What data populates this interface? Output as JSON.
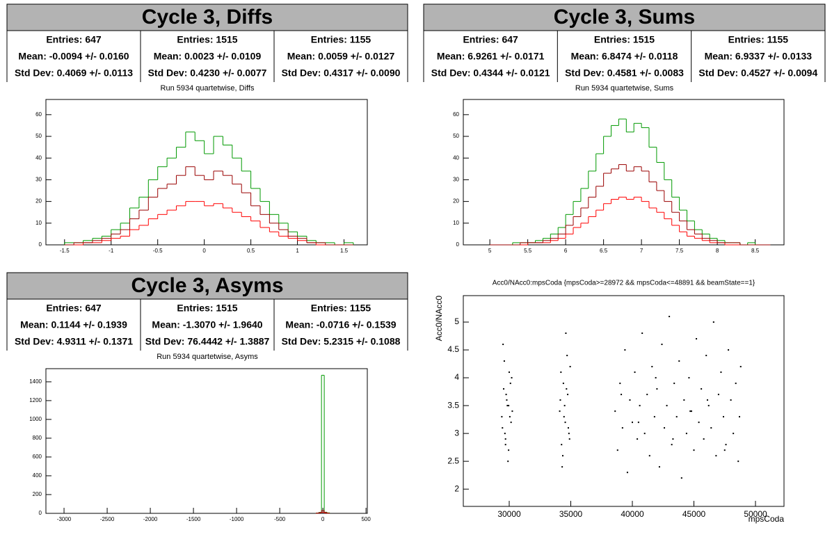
{
  "chart_data": [
    {
      "type": "histogram",
      "title": "Cycle 3, Diffs",
      "subtitle": "Run 5934 quartetwise, Diffs",
      "bins": [
        -1.5,
        -1.4,
        -1.3,
        -1.2,
        -1.1,
        -1,
        -0.9,
        -0.8,
        -0.7,
        -0.6,
        -0.5,
        -0.4,
        -0.3,
        -0.2,
        -0.1,
        0,
        0.1,
        0.2,
        0.3,
        0.4,
        0.5,
        0.6,
        0.7,
        0.8,
        0.9,
        1,
        1.1,
        1.2,
        1.3,
        1.4,
        1.5,
        1.6
      ],
      "series": [
        {
          "color": "#ff0000",
          "stats": [
            "Entries: 647",
            "Mean: -0.0094 +/- 0.0160",
            "Std Dev: 0.4069 +/- 0.0113"
          ],
          "values": [
            0,
            0,
            1,
            1,
            2,
            3,
            4,
            7,
            9,
            12,
            14,
            16,
            18,
            20,
            20,
            18,
            19,
            17,
            15,
            13,
            11,
            8,
            6,
            4,
            3,
            2,
            1,
            0,
            0,
            0,
            0
          ]
        },
        {
          "color": "#009900",
          "stats": [
            "Entries: 1515",
            "Mean: 0.0023 +/- 0.0109",
            "Std Dev: 0.4230 +/- 0.0077"
          ],
          "values": [
            1,
            1,
            2,
            3,
            4,
            7,
            10,
            17,
            22,
            30,
            36,
            40,
            45,
            52,
            48,
            42,
            50,
            46,
            40,
            34,
            26,
            20,
            14,
            10,
            6,
            4,
            2,
            1,
            1,
            0,
            1
          ]
        },
        {
          "color": "#990000",
          "stats": [
            "Entries: 1155",
            "Mean: 0.0059 +/- 0.0127",
            "Std Dev: 0.4317 +/- 0.0090"
          ],
          "values": [
            0,
            1,
            1,
            2,
            3,
            5,
            7,
            12,
            16,
            22,
            26,
            28,
            32,
            36,
            32,
            30,
            34,
            32,
            28,
            24,
            18,
            14,
            10,
            7,
            4,
            3,
            1,
            1,
            0,
            0,
            0
          ]
        }
      ],
      "xlim": [
        -1.7,
        1.75
      ],
      "xticks": [
        -1.5,
        -1,
        -0.5,
        0,
        0.5,
        1,
        1.5
      ],
      "ylim": [
        0,
        67
      ],
      "yticks": [
        0,
        10,
        20,
        30,
        40,
        50,
        60
      ]
    },
    {
      "type": "histogram",
      "title": "Cycle 3, Sums",
      "subtitle": "Run 5934 quartetwise, Sums",
      "bins": [
        5,
        5.1,
        5.2,
        5.3,
        5.4,
        5.5,
        5.6,
        5.7,
        5.8,
        5.9,
        6,
        6.1,
        6.2,
        6.3,
        6.4,
        6.5,
        6.6,
        6.7,
        6.8,
        6.9,
        7,
        7.1,
        7.2,
        7.3,
        7.4,
        7.5,
        7.6,
        7.7,
        7.8,
        7.9,
        8,
        8.1,
        8.2,
        8.3,
        8.4,
        8.5,
        8.6,
        8.7
      ],
      "series": [
        {
          "color": "#ff0000",
          "stats": [
            "Entries: 647",
            "Mean: 6.9261 +/- 0.0171",
            "Std Dev: 0.4344 +/- 0.0121"
          ],
          "values": [
            0,
            0,
            0,
            0,
            0,
            1,
            1,
            1,
            2,
            3,
            5,
            8,
            10,
            13,
            16,
            19,
            21,
            22,
            21,
            22,
            20,
            17,
            15,
            12,
            9,
            6,
            4,
            3,
            2,
            1,
            1,
            0,
            0,
            0,
            0,
            0,
            0
          ]
        },
        {
          "color": "#009900",
          "stats": [
            "Entries: 1515",
            "Mean: 6.8474 +/- 0.0118",
            "Std Dev: 0.4581 +/- 0.0083"
          ],
          "values": [
            0,
            0,
            0,
            1,
            1,
            1,
            2,
            3,
            5,
            8,
            14,
            20,
            26,
            34,
            42,
            50,
            55,
            58,
            52,
            56,
            54,
            45,
            38,
            30,
            22,
            16,
            11,
            7,
            5,
            3,
            2,
            1,
            1,
            0,
            1,
            0,
            0
          ]
        },
        {
          "color": "#990000",
          "stats": [
            "Entries: 1155",
            "Mean: 6.9337 +/- 0.0133",
            "Std Dev: 0.4527 +/- 0.0094"
          ],
          "values": [
            0,
            0,
            0,
            0,
            1,
            1,
            1,
            2,
            3,
            5,
            9,
            13,
            17,
            22,
            27,
            33,
            35,
            37,
            34,
            36,
            34,
            29,
            25,
            20,
            15,
            11,
            7,
            5,
            3,
            2,
            1,
            1,
            1,
            0,
            0,
            0,
            0
          ]
        }
      ],
      "xlim": [
        4.65,
        8.88
      ],
      "xticks": [
        5,
        5.5,
        6,
        6.5,
        7,
        7.5,
        8,
        8.5
      ],
      "ylim": [
        0,
        67
      ],
      "yticks": [
        0,
        10,
        20,
        30,
        40,
        50,
        60
      ]
    },
    {
      "type": "histogram",
      "title": "Cycle 3, Asyms",
      "subtitle": "Run 5934 quartetwise, Asyms",
      "bins": [
        -80,
        -48,
        -16,
        16,
        48,
        80
      ],
      "series": [
        {
          "color": "#ff0000",
          "stats": [
            "Entries: 647",
            "Mean: 0.1144 +/- 0.1939",
            "Std Dev: 4.9311 +/- 0.1371"
          ],
          "values": [
            2,
            5,
            12,
            4,
            1
          ]
        },
        {
          "color": "#009900",
          "stats": [
            "Entries: 1515",
            "Mean: -1.3070 +/- 1.9640",
            "Std Dev: 76.4442 +/- 1.3887"
          ],
          "values": [
            4,
            10,
            1470,
            12,
            5
          ]
        },
        {
          "color": "#990000",
          "stats": [
            "Entries: 1155",
            "Mean: -0.0716 +/- 0.1539",
            "Std Dev: 5.2315 +/- 0.1088"
          ],
          "values": [
            3,
            8,
            30,
            9,
            2
          ]
        }
      ],
      "xlim": [
        -3210,
        515
      ],
      "xticks": [
        -3000,
        -2500,
        -2000,
        -1500,
        -1000,
        -500,
        0,
        500
      ],
      "ylim": [
        0,
        1540
      ],
      "yticks": [
        0,
        200,
        400,
        600,
        800,
        1000,
        1200,
        1400
      ]
    },
    {
      "type": "scatter",
      "title": "Acc0/NAcc0:mpsCoda {mpsCoda>=28972 && mpsCoda<=48891 && beamState==1}",
      "x_label": "mpsCoda",
      "y_label": "Acc0/NAcc0",
      "color": "#000000",
      "x": [
        29400,
        29550,
        29700,
        29850,
        30000,
        30150,
        29500,
        29650,
        29800,
        29950,
        30100,
        30250,
        29450,
        29600,
        29750,
        29900,
        30050,
        30200,
        29700,
        29950,
        34100,
        34250,
        34400,
        34550,
        34700,
        34850,
        34150,
        34300,
        34450,
        34600,
        34750,
        34900,
        34200,
        34500,
        34800,
        34350,
        34650,
        34950,
        38600,
        38800,
        39000,
        39200,
        39400,
        39600,
        39800,
        40000,
        40200,
        40400,
        40600,
        40800,
        41000,
        41200,
        41400,
        41600,
        41800,
        42000,
        42200,
        42400,
        42600,
        42800,
        43000,
        43200,
        43400,
        43600,
        43800,
        44000,
        44200,
        44400,
        44600,
        44800,
        45000,
        45200,
        45400,
        45600,
        45800,
        46000,
        46200,
        46400,
        46600,
        46800,
        47000,
        47200,
        47400,
        47600,
        47800,
        48000,
        48200,
        48400,
        48600,
        48800,
        39100,
        40500,
        41900,
        43300,
        44700,
        46100,
        47500,
        48700
      ],
      "y": [
        3.3,
        3.8,
        2.9,
        3.5,
        4.1,
        3.2,
        4.6,
        3.0,
        3.6,
        2.7,
        3.9,
        3.4,
        3.1,
        4.3,
        3.7,
        2.5,
        3.3,
        4.0,
        2.8,
        3.5,
        3.4,
        2.8,
        3.9,
        3.2,
        4.4,
        3.0,
        3.6,
        2.4,
        3.3,
        4.8,
        3.7,
        2.9,
        4.1,
        3.5,
        3.1,
        2.6,
        3.8,
        4.2,
        3.4,
        2.7,
        3.9,
        3.1,
        4.5,
        2.3,
        3.6,
        3.2,
        4.1,
        2.9,
        3.5,
        4.8,
        3.0,
        3.7,
        2.6,
        4.2,
        3.3,
        3.8,
        2.4,
        4.6,
        3.1,
        3.5,
        5.1,
        2.8,
        3.9,
        3.3,
        4.3,
        2.2,
        3.6,
        3.0,
        4.0,
        3.4,
        2.7,
        4.7,
        3.2,
        3.8,
        2.9,
        4.4,
        3.5,
        3.1,
        5.0,
        2.6,
        3.7,
        4.1,
        3.3,
        2.8,
        4.5,
        3.6,
        3.0,
        3.9,
        2.5,
        4.2,
        3.7,
        3.2,
        4.0,
        2.9,
        3.4,
        3.6,
        2.7,
        3.3
      ],
      "xlim": [
        26271,
        52316
      ],
      "xticks": [
        30000,
        35000,
        40000,
        45000,
        50000
      ],
      "ylim": [
        1.69,
        5.475
      ],
      "yticks": [
        2,
        2.5,
        3,
        3.5,
        4,
        4.5,
        5
      ]
    }
  ]
}
